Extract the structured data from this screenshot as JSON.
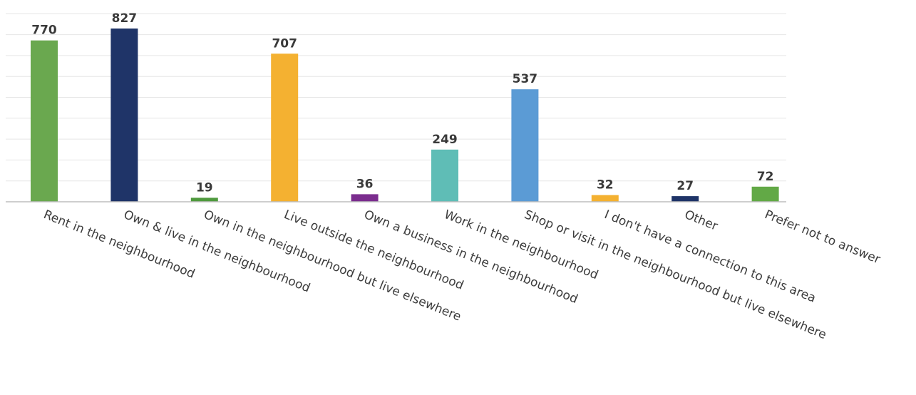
{
  "chart_data": {
    "type": "bar",
    "title": "",
    "xlabel": "",
    "ylabel": "",
    "ylim": [
      0,
      900
    ],
    "grid": true,
    "categories": [
      "Rent in the neighbourhood",
      "Own & live in the neighbourhood",
      "Own in the neighbourhood but live elsewhere",
      "Live outside the neighbourhood",
      "Own a business in the neighbourhood",
      "Work in the neighbourhood",
      "Shop or visit in the neighbourhood but live elsewhere",
      "I don't have a connection to this area",
      "Other",
      "Prefer not to answer"
    ],
    "values": [
      770,
      827,
      19,
      707,
      36,
      249,
      537,
      32,
      27,
      72
    ],
    "colors": [
      "#6aa84f",
      "#1f3468",
      "#4f9a3e",
      "#f4b131",
      "#7b2d8e",
      "#5fbdb6",
      "#5b9bd5",
      "#f4b131",
      "#1f3468",
      "#62a946"
    ]
  }
}
